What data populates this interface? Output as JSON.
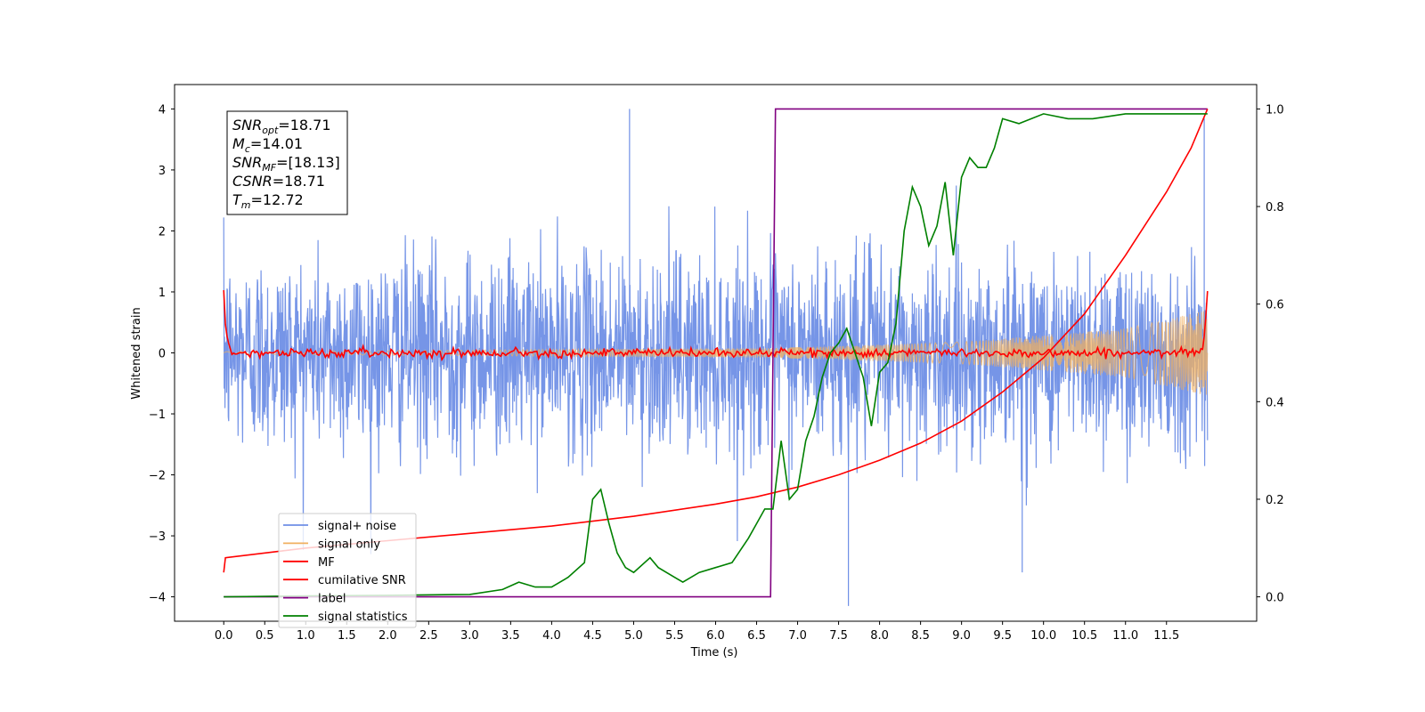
{
  "chart_data": {
    "type": "line",
    "xlabel": "Time (s)",
    "ylabel": "Whitened strain",
    "xlim": [
      -0.6,
      12.6
    ],
    "ylim": [
      -4.4,
      4.4
    ],
    "ylim_right": [
      -0.05,
      1.05
    ],
    "grid": false,
    "legend_position": "lower-left",
    "x_ticks": [
      "0.0",
      "0.5",
      "1.0",
      "1.5",
      "2.0",
      "2.5",
      "3.0",
      "3.5",
      "4.0",
      "4.5",
      "5.0",
      "5.5",
      "6.0",
      "6.5",
      "7.0",
      "7.5",
      "8.0",
      "8.5",
      "9.0",
      "9.5",
      "10.0",
      "10.5",
      "11.0",
      "11.5"
    ],
    "y_ticks": [
      "4",
      "3",
      "2",
      "1",
      "0",
      "−1",
      "−2",
      "−3",
      "−4"
    ],
    "y_right_ticks": [
      "1.0",
      "0.8",
      "0.6",
      "0.4",
      "0.2",
      "0.0"
    ],
    "annotation": {
      "lines": [
        {
          "base": "SNR",
          "sub": "opt",
          "value": "=18.71"
        },
        {
          "base": "M",
          "sub": "c",
          "value": "=14.01"
        },
        {
          "base": "SNR",
          "sub": "MF",
          "value": "=[18.13]"
        },
        {
          "base": "CSNR",
          "sub": "",
          "value": "=18.71"
        },
        {
          "base": "T",
          "sub": "m",
          "value": "=12.72"
        }
      ]
    },
    "series": [
      {
        "name": "signal+ noise",
        "color": "#6f8fe6",
        "axis": "left",
        "description_values": {
          "noise_std": 0.8,
          "max": 4.0,
          "min": -4.15
        }
      },
      {
        "name": "signal only",
        "color": "#f0b060",
        "axis": "left",
        "envelope": {
          "x": [
            0,
            6.7,
            9.0,
            11.0,
            12.0
          ],
          "amp": [
            0.02,
            0.08,
            0.18,
            0.4,
            0.7
          ]
        }
      },
      {
        "name": "MF",
        "color": "#ff0000",
        "axis": "left",
        "description_values": {
          "start": 1.0,
          "baseline": 0.0,
          "end": 1.0
        }
      },
      {
        "name": "cumilative SNR",
        "color": "#ff0000",
        "axis": "right",
        "x": [
          0,
          0.02,
          1,
          2,
          3,
          4,
          5,
          6,
          6.5,
          7,
          7.5,
          8,
          8.5,
          9,
          9.5,
          10,
          10.5,
          11,
          11.5,
          11.8,
          12.0
        ],
        "values": [
          0.05,
          0.08,
          0.1,
          0.115,
          0.13,
          0.145,
          0.165,
          0.19,
          0.205,
          0.225,
          0.25,
          0.28,
          0.315,
          0.36,
          0.42,
          0.49,
          0.58,
          0.7,
          0.83,
          0.92,
          1.0
        ]
      },
      {
        "name": "label",
        "color": "#800080",
        "axis": "right",
        "x": [
          0,
          6.67,
          6.73,
          12.0
        ],
        "values": [
          0.0,
          0.0,
          1.0,
          1.0
        ]
      },
      {
        "name": "signal statistics",
        "color": "#008000",
        "axis": "right",
        "x": [
          0,
          1,
          2,
          3,
          3.4,
          3.6,
          3.8,
          4.0,
          4.2,
          4.4,
          4.5,
          4.6,
          4.7,
          4.8,
          4.9,
          5.0,
          5.2,
          5.3,
          5.5,
          5.6,
          5.8,
          6.0,
          6.2,
          6.4,
          6.5,
          6.6,
          6.7,
          6.8,
          6.9,
          7.0,
          7.1,
          7.2,
          7.3,
          7.4,
          7.5,
          7.6,
          7.7,
          7.8,
          7.9,
          8.0,
          8.1,
          8.2,
          8.3,
          8.4,
          8.5,
          8.6,
          8.7,
          8.8,
          8.9,
          9.0,
          9.1,
          9.2,
          9.3,
          9.4,
          9.5,
          9.7,
          10.0,
          10.3,
          10.6,
          11.0,
          11.5,
          12.0
        ],
        "values": [
          0.0,
          0.002,
          0.003,
          0.005,
          0.015,
          0.03,
          0.02,
          0.02,
          0.04,
          0.07,
          0.2,
          0.22,
          0.15,
          0.09,
          0.06,
          0.05,
          0.08,
          0.06,
          0.04,
          0.03,
          0.05,
          0.06,
          0.07,
          0.12,
          0.15,
          0.18,
          0.18,
          0.32,
          0.2,
          0.22,
          0.32,
          0.37,
          0.45,
          0.5,
          0.52,
          0.55,
          0.5,
          0.45,
          0.35,
          0.46,
          0.48,
          0.56,
          0.75,
          0.84,
          0.8,
          0.72,
          0.76,
          0.85,
          0.7,
          0.86,
          0.9,
          0.88,
          0.88,
          0.92,
          0.98,
          0.97,
          0.99,
          0.98,
          0.98,
          0.99,
          0.99,
          0.99
        ]
      }
    ]
  }
}
